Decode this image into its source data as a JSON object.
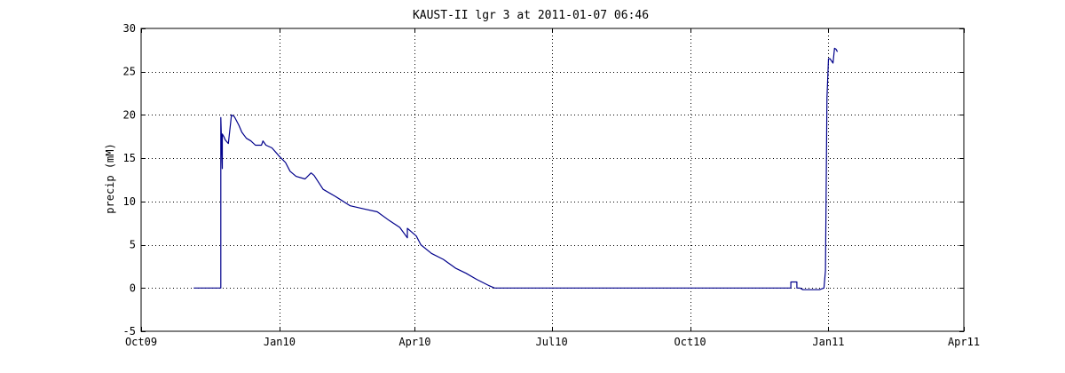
{
  "chart_data": {
    "type": "line",
    "title": "KAUST-II lgr 3 at 2011-01-07 06:46",
    "xlabel": "",
    "ylabel": "precip (mM)",
    "x_ticks": [
      "Oct09",
      "Jan10",
      "Apr10",
      "Jul10",
      "Oct10",
      "Jan11",
      "Apr11"
    ],
    "x_tick_dates": [
      "2009-10-01",
      "2010-01-01",
      "2010-04-01",
      "2010-07-01",
      "2010-10-01",
      "2011-01-01",
      "2011-04-01"
    ],
    "xlim": [
      "2009-10-01",
      "2011-04-01"
    ],
    "y_ticks": [
      -5,
      0,
      5,
      10,
      15,
      20,
      25,
      30
    ],
    "ylim": [
      -5,
      30
    ],
    "grid": true,
    "line_color": "#00008b",
    "series": [
      {
        "x": [
          "2009-11-05",
          "2009-11-23",
          "2009-11-23",
          "2009-11-24",
          "2009-11-24",
          "2009-11-24",
          "2009-11-25",
          "2009-11-26",
          "2009-11-28",
          "2009-11-30",
          "2009-11-30",
          "2009-12-02",
          "2009-12-05",
          "2009-12-07",
          "2009-12-10",
          "2009-12-13",
          "2009-12-16",
          "2009-12-20",
          "2009-12-21",
          "2009-12-23",
          "2009-12-27",
          "2010-01-01",
          "2010-01-05",
          "2010-01-08",
          "2010-01-12",
          "2010-01-18",
          "2010-01-22",
          "2010-01-22",
          "2010-01-24",
          "2010-01-30",
          "2010-02-07",
          "2010-02-17",
          "2010-02-27",
          "2010-03-07",
          "2010-03-15",
          "2010-03-22",
          "2010-03-27",
          "2010-03-27",
          "2010-04-02",
          "2010-04-05",
          "2010-04-12",
          "2010-04-20",
          "2010-04-28",
          "2010-05-05",
          "2010-05-12",
          "2010-05-20",
          "2010-05-24",
          "2010-12-07",
          "2010-12-07",
          "2010-12-11",
          "2010-12-11",
          "2010-12-13",
          "2010-12-15",
          "2010-12-26",
          "2010-12-29",
          "2010-12-30",
          "2010-12-31",
          "2011-01-01",
          "2011-01-02",
          "2011-01-04",
          "2011-01-05",
          "2011-01-06",
          "2011-01-07"
        ],
        "y": [
          0,
          0,
          19.7,
          13.8,
          17.8,
          17.8,
          17.5,
          17.1,
          16.7,
          19.9,
          20,
          19.8,
          18.8,
          18,
          17.3,
          17,
          16.5,
          16.5,
          17,
          16.5,
          16.2,
          15.2,
          14.5,
          13.5,
          12.9,
          12.6,
          13.3,
          13.3,
          13,
          11.4,
          10.6,
          9.5,
          9.1,
          8.8,
          7.8,
          7,
          5.8,
          6.9,
          6,
          5,
          4,
          3.3,
          2.3,
          1.7,
          1,
          0.3,
          0,
          0,
          0.7,
          0.7,
          0,
          0,
          -0.2,
          -0.2,
          0,
          2,
          22,
          26.5,
          26.5,
          26,
          27.7,
          27.6,
          27.3
        ]
      }
    ]
  }
}
